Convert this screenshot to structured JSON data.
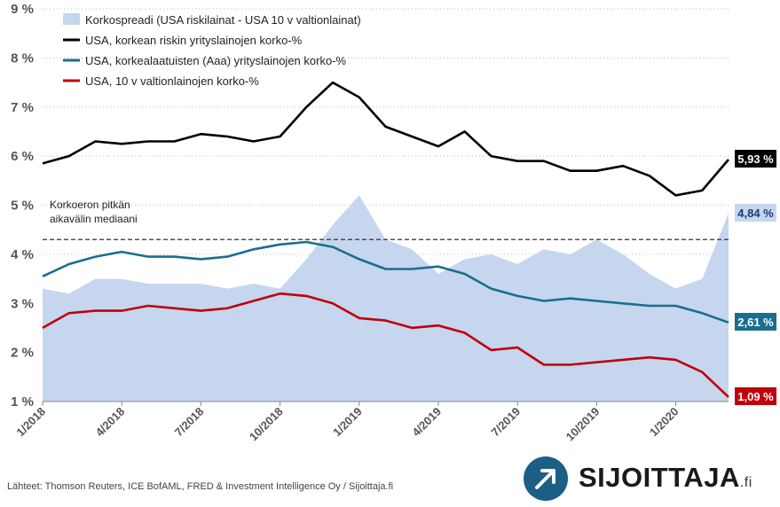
{
  "chart_data": {
    "type": "line",
    "y_unit_suffix": " %",
    "ylim": [
      1,
      9
    ],
    "y_ticks": [
      "1 %",
      "2 %",
      "3 %",
      "4 %",
      "5 %",
      "6 %",
      "7 %",
      "8 %",
      "9 %"
    ],
    "x_ticks": [
      "1/2018",
      "4/2018",
      "7/2018",
      "10/2018",
      "1/2019",
      "4/2019",
      "7/2019",
      "10/2019",
      "1/2020"
    ],
    "grid": "horizontal-dotted",
    "legend_position": "top-left",
    "note": {
      "line1": "Korkoeron pitkän",
      "line2": "aikavälin mediaani",
      "value": 4.3
    },
    "x": [
      "2018-01",
      "2018-02",
      "2018-03",
      "2018-04",
      "2018-05",
      "2018-06",
      "2018-07",
      "2018-08",
      "2018-09",
      "2018-10",
      "2018-11",
      "2018-12",
      "2019-01",
      "2019-02",
      "2019-03",
      "2019-04",
      "2019-05",
      "2019-06",
      "2019-07",
      "2019-08",
      "2019-09",
      "2019-10",
      "2019-11",
      "2019-12",
      "2020-01",
      "2020-02",
      "2020-03"
    ],
    "series": [
      {
        "key": "spread",
        "name": "Korkospreadi (USA riskilainat - USA 10 v valtionlainat)",
        "type": "area",
        "color": "#c5d6ee",
        "values": [
          3.3,
          3.2,
          3.5,
          3.5,
          3.4,
          3.4,
          3.4,
          3.3,
          3.4,
          3.3,
          3.9,
          4.6,
          5.2,
          4.3,
          4.1,
          3.6,
          3.9,
          4.0,
          3.8,
          4.1,
          4.0,
          4.3,
          4.0,
          3.6,
          3.3,
          3.5,
          4.84
        ]
      },
      {
        "key": "high_yield",
        "name": "USA, korkean riskin yrityslainojen korko-%",
        "type": "line",
        "color": "#000000",
        "values": [
          5.85,
          6.0,
          6.3,
          6.25,
          6.3,
          6.3,
          6.45,
          6.4,
          6.3,
          6.4,
          7.0,
          7.5,
          7.2,
          6.6,
          6.4,
          6.2,
          6.5,
          6.0,
          5.9,
          5.9,
          5.7,
          5.7,
          5.8,
          5.6,
          5.2,
          5.3,
          5.93
        ]
      },
      {
        "key": "aaa",
        "name": "USA, korkealaatuisten (Aaa) yrityslainojen korko-%",
        "type": "line",
        "color": "#1a6e8e",
        "values": [
          3.55,
          3.8,
          3.95,
          4.05,
          3.95,
          3.95,
          3.9,
          3.95,
          4.1,
          4.2,
          4.25,
          4.15,
          3.9,
          3.7,
          3.7,
          3.75,
          3.6,
          3.3,
          3.15,
          3.05,
          3.1,
          3.05,
          3.0,
          2.95,
          2.95,
          2.8,
          2.61
        ]
      },
      {
        "key": "treasury",
        "name": "USA, 10 v valtionlainojen korko-%",
        "type": "line",
        "color": "#c0000a",
        "values": [
          2.5,
          2.8,
          2.85,
          2.85,
          2.95,
          2.9,
          2.85,
          2.9,
          3.05,
          3.2,
          3.15,
          3.0,
          2.7,
          2.65,
          2.5,
          2.55,
          2.4,
          2.05,
          2.1,
          1.75,
          1.75,
          1.8,
          1.85,
          1.9,
          1.85,
          1.6,
          1.09
        ]
      }
    ],
    "end_labels": [
      {
        "series": "high_yield",
        "text": "5,93 %",
        "bg": "#000000",
        "fg": "#ffffff"
      },
      {
        "series": "spread",
        "text": "4,84 %",
        "bg": "#c5d6ee",
        "fg": "#1a3a6e"
      },
      {
        "series": "aaa",
        "text": "2,61 %",
        "bg": "#1a6e8e",
        "fg": "#ffffff"
      },
      {
        "series": "treasury",
        "text": "1,09 %",
        "bg": "#c0000a",
        "fg": "#ffffff"
      }
    ]
  },
  "source_text": "Lähteet: Thomson Reuters, ICE BofAML, FRED & Investment Intelligence Oy / Sijoittaja.fi",
  "logo": {
    "word": "SIJOITTAJA",
    "suffix": ".fi",
    "icon": "arrow-up-right-icon",
    "color": "#1b5f86"
  }
}
